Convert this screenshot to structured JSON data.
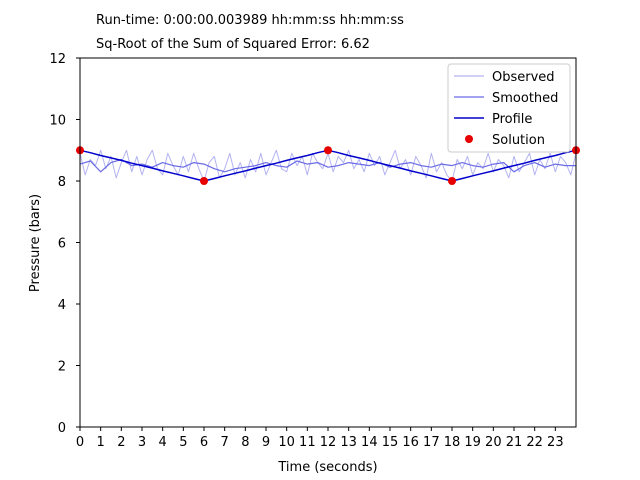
{
  "chart_data": {
    "type": "line",
    "header": {
      "runtime": "Run-time: 0:00:00.003989 hh:mm:ss hh:mm:ss",
      "error": "Sq-Root of the Sum of Squared Error: 6.62"
    },
    "xlabel": "Time (seconds)",
    "ylabel": "Pressure (bars)",
    "xlim": [
      0,
      24
    ],
    "ylim": [
      0,
      12
    ],
    "xticks": [
      0,
      1,
      2,
      3,
      4,
      5,
      6,
      7,
      8,
      9,
      10,
      11,
      12,
      13,
      14,
      15,
      16,
      17,
      18,
      19,
      20,
      21,
      22,
      23
    ],
    "yticks": [
      0,
      2,
      4,
      6,
      8,
      10,
      12
    ],
    "legend_position": "top-right",
    "series": [
      {
        "name": "Observed",
        "color": "#b3b3f2",
        "x": [
          0,
          0.25,
          0.5,
          0.75,
          1,
          1.25,
          1.5,
          1.75,
          2,
          2.25,
          2.5,
          2.75,
          3,
          3.25,
          3.5,
          3.75,
          4,
          4.25,
          4.5,
          4.75,
          5,
          5.25,
          5.5,
          5.75,
          6,
          6.25,
          6.5,
          6.75,
          7,
          7.25,
          7.5,
          7.75,
          8,
          8.25,
          8.5,
          8.75,
          9,
          9.25,
          9.5,
          9.75,
          10,
          10.25,
          10.5,
          10.75,
          11,
          11.25,
          11.5,
          11.75,
          12,
          12.25,
          12.5,
          12.75,
          13,
          13.25,
          13.5,
          13.75,
          14,
          14.25,
          14.5,
          14.75,
          15,
          15.25,
          15.5,
          15.75,
          16,
          16.25,
          16.5,
          16.75,
          17,
          17.25,
          17.5,
          17.75,
          18,
          18.25,
          18.5,
          18.75,
          19,
          19.25,
          19.5,
          19.75,
          20,
          20.25,
          20.5,
          20.75,
          21,
          21.25,
          21.5,
          21.75,
          22,
          22.25,
          22.5,
          22.75,
          23,
          23.25,
          23.5,
          23.75,
          24
        ],
        "values": [
          8.9,
          8.2,
          8.7,
          8.5,
          9.0,
          8.4,
          8.8,
          8.1,
          8.6,
          9.0,
          8.3,
          8.8,
          8.2,
          8.7,
          9.0,
          8.4,
          8.2,
          8.9,
          8.5,
          8.2,
          8.8,
          8.3,
          8.9,
          8.4,
          8.0,
          8.6,
          8.8,
          8.1,
          8.4,
          8.9,
          8.2,
          8.6,
          8.1,
          8.7,
          8.3,
          8.9,
          8.2,
          8.6,
          9.0,
          8.4,
          8.3,
          8.9,
          8.5,
          8.8,
          8.2,
          8.9,
          8.6,
          8.4,
          8.9,
          8.3,
          8.8,
          8.6,
          9.0,
          8.4,
          8.7,
          8.3,
          8.9,
          8.5,
          8.8,
          8.2,
          8.6,
          9.0,
          8.4,
          8.7,
          8.2,
          8.8,
          8.5,
          8.1,
          8.9,
          8.3,
          8.6,
          8.2,
          8.0,
          8.7,
          8.4,
          8.8,
          8.2,
          8.6,
          8.4,
          8.9,
          8.3,
          8.7,
          8.5,
          8.1,
          8.8,
          8.3,
          8.6,
          8.9,
          8.2,
          8.7,
          8.4,
          8.9,
          8.3,
          8.8,
          8.6,
          8.2,
          8.9
        ]
      },
      {
        "name": "Smoothed",
        "color": "#6b6be6",
        "x": [
          0,
          0.5,
          1,
          1.5,
          2,
          2.5,
          3,
          3.5,
          4,
          4.5,
          5,
          5.5,
          6,
          6.5,
          7,
          7.5,
          8,
          8.5,
          9,
          9.5,
          10,
          10.5,
          11,
          11.5,
          12,
          12.5,
          13,
          13.5,
          14,
          14.5,
          15,
          15.5,
          16,
          16.5,
          17,
          17.5,
          18,
          18.5,
          19,
          19.5,
          20,
          20.5,
          21,
          21.5,
          22,
          22.5,
          23,
          23.5,
          24
        ],
        "values": [
          8.55,
          8.65,
          8.3,
          8.6,
          8.7,
          8.5,
          8.55,
          8.45,
          8.6,
          8.5,
          8.45,
          8.6,
          8.55,
          8.4,
          8.3,
          8.4,
          8.45,
          8.5,
          8.6,
          8.5,
          8.45,
          8.65,
          8.55,
          8.6,
          8.45,
          8.5,
          8.6,
          8.55,
          8.5,
          8.6,
          8.45,
          8.55,
          8.6,
          8.5,
          8.45,
          8.55,
          8.5,
          8.6,
          8.5,
          8.45,
          8.55,
          8.6,
          8.3,
          8.5,
          8.6,
          8.45,
          8.55,
          8.5,
          8.5
        ]
      },
      {
        "name": "Profile",
        "color": "#0000cc",
        "x": [
          0,
          0.5,
          1,
          1.5,
          2,
          2.5,
          3,
          3.5,
          4,
          4.5,
          5,
          5.5,
          6,
          6.5,
          7,
          7.5,
          8,
          8.5,
          9,
          9.5,
          10,
          10.5,
          11,
          11.5,
          12,
          12.5,
          13,
          13.5,
          14,
          14.5,
          15,
          15.5,
          16,
          16.5,
          17,
          17.5,
          18,
          18.5,
          19,
          19.5,
          20,
          20.5,
          21,
          21.5,
          22,
          22.5,
          23,
          23.5,
          24
        ],
        "values": [
          9.0,
          8.92,
          8.83,
          8.75,
          8.67,
          8.58,
          8.5,
          8.42,
          8.33,
          8.25,
          8.17,
          8.08,
          8.0,
          8.08,
          8.17,
          8.25,
          8.33,
          8.42,
          8.5,
          8.58,
          8.67,
          8.75,
          8.83,
          8.92,
          9.0,
          8.92,
          8.83,
          8.75,
          8.67,
          8.58,
          8.5,
          8.42,
          8.33,
          8.25,
          8.17,
          8.08,
          8.0,
          8.08,
          8.17,
          8.25,
          8.33,
          8.42,
          8.5,
          8.58,
          8.67,
          8.75,
          8.83,
          8.92,
          9.0
        ]
      },
      {
        "name": "Solution",
        "color": "#e60000",
        "marker": "dot",
        "x": [
          0,
          6,
          12,
          18,
          24
        ],
        "values": [
          9.0,
          8.0,
          9.0,
          8.0,
          9.0
        ]
      }
    ]
  }
}
